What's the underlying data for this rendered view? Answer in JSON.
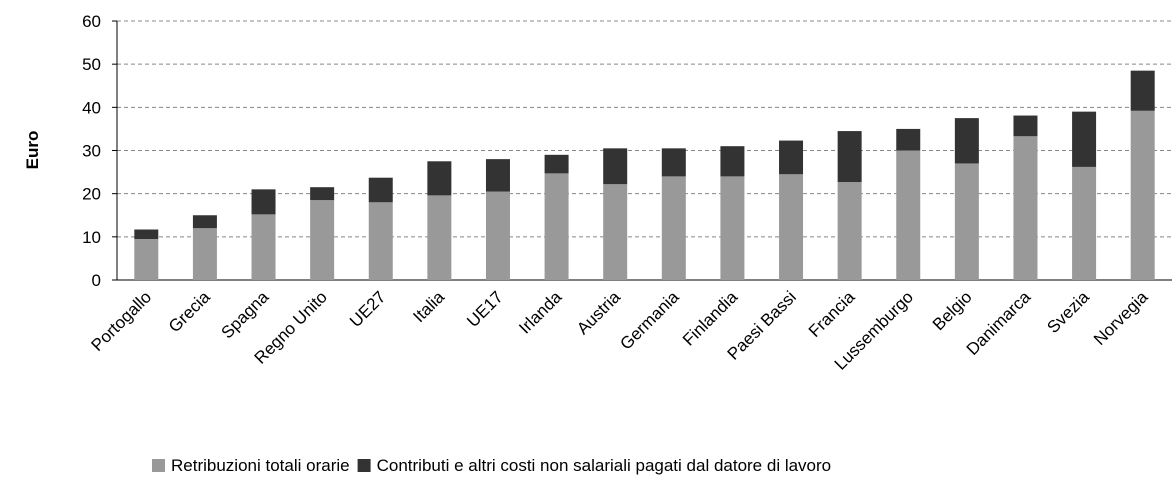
{
  "chart_data": {
    "type": "stacked_bar",
    "ylabel": "Euro",
    "categories": [
      "Portogallo",
      "Grecia",
      "Spagna",
      "Regno Unito",
      "UE27",
      "Italia",
      "UE17",
      "Irlanda",
      "Austria",
      "Germania",
      "Finlandia",
      "Paesi Bassi",
      "Francia",
      "Lussemburgo",
      "Belgio",
      "Danimarca",
      "Svezia",
      "Norvegia"
    ],
    "series": [
      {
        "name": "Retribuzioni totali orarie",
        "color": "#999999",
        "values": [
          9.5,
          12,
          15.2,
          18.5,
          18,
          19.6,
          20.5,
          24.7,
          22.2,
          24,
          24,
          24.5,
          22.7,
          30,
          27,
          33.3,
          26.2,
          39.2
        ]
      },
      {
        "name": "Contributi e altri costi non salariali pagati dal datore di lavoro",
        "color": "#333333",
        "values": [
          2.2,
          3,
          5.8,
          3,
          5.7,
          7.9,
          7.5,
          4.3,
          8.3,
          6.5,
          7,
          7.8,
          11.8,
          5,
          10.5,
          4.8,
          12.8,
          9.3
        ]
      }
    ],
    "ylim": [
      0,
      60
    ],
    "yticks": [
      0,
      10,
      20,
      30,
      40,
      50,
      60
    ],
    "grid": true,
    "legend": "bottom"
  }
}
